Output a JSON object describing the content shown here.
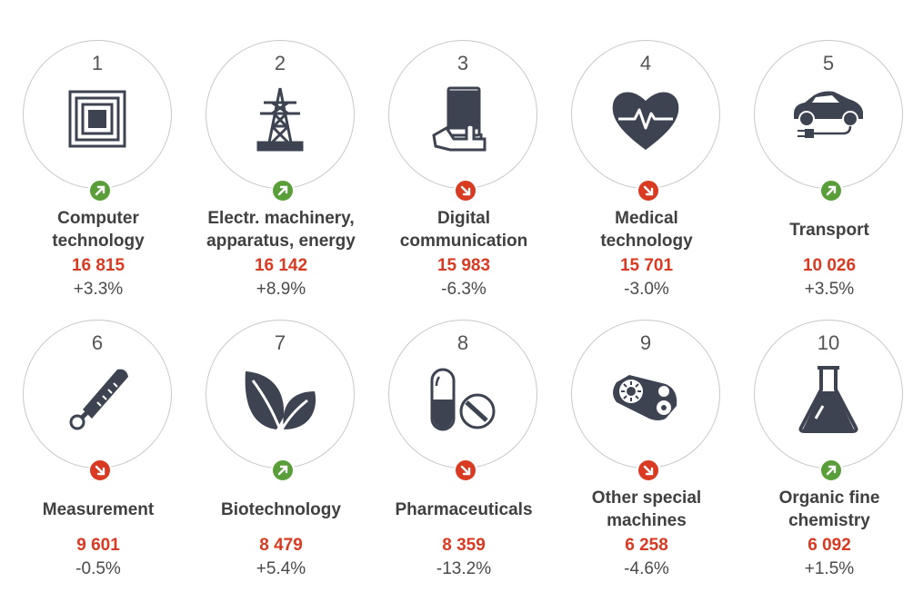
{
  "colors": {
    "up": "#5a9e3a",
    "down": "#d83a22",
    "count": "#d83a22",
    "icon": "#3d4350"
  },
  "fields": [
    {
      "rank": "1",
      "label": "Computer\ntechnology",
      "count": "16 815",
      "change": "+3.3%",
      "trend": "up",
      "icon": "microchip-icon"
    },
    {
      "rank": "2",
      "label": "Electr. machinery,\napparatus, energy",
      "count": "16 142",
      "change": "+8.9%",
      "trend": "up",
      "icon": "power-pylon-icon"
    },
    {
      "rank": "3",
      "label": "Digital\ncommunication",
      "count": "15 983",
      "change": "-6.3%",
      "trend": "down",
      "icon": "smartphone-hand-icon"
    },
    {
      "rank": "4",
      "label": "Medical\ntechnology",
      "count": "15 701",
      "change": "-3.0%",
      "trend": "down",
      "icon": "heartbeat-icon"
    },
    {
      "rank": "5",
      "label": "Transport",
      "count": "10 026",
      "change": "+3.5%",
      "trend": "up",
      "icon": "electric-car-icon"
    },
    {
      "rank": "6",
      "label": "Measurement",
      "count": "9 601",
      "change": "-0.5%",
      "trend": "down",
      "icon": "thermometer-icon"
    },
    {
      "rank": "7",
      "label": "Biotechnology",
      "count": "8 479",
      "change": "+5.4%",
      "trend": "up",
      "icon": "leaves-icon"
    },
    {
      "rank": "8",
      "label": "Pharmaceuticals",
      "count": "8 359",
      "change": "-13.2%",
      "trend": "down",
      "icon": "pills-icon"
    },
    {
      "rank": "9",
      "label": "Other special\nmachines",
      "count": "6 258",
      "change": "-4.6%",
      "trend": "down",
      "icon": "gears-belt-icon"
    },
    {
      "rank": "10",
      "label": "Organic fine\nchemistry",
      "count": "6 092",
      "change": "+1.5%",
      "trend": "up",
      "icon": "flask-icon"
    }
  ]
}
